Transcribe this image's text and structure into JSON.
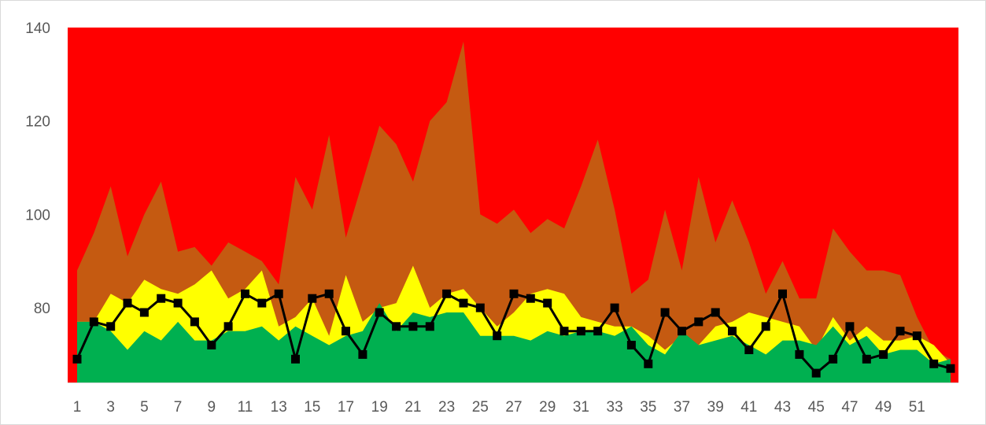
{
  "chart_data": {
    "type": "area",
    "title": "",
    "xlabel": "",
    "ylabel": "",
    "ylim": [
      64,
      140
    ],
    "y_ticks": [
      80,
      100,
      120,
      140
    ],
    "x_tick_labels": [
      "1",
      "3",
      "5",
      "7",
      "9",
      "11",
      "13",
      "15",
      "17",
      "19",
      "21",
      "23",
      "25",
      "27",
      "29",
      "31",
      "33",
      "35",
      "37",
      "39",
      "41",
      "43",
      "45",
      "47",
      "49",
      "51"
    ],
    "x": [
      1,
      2,
      3,
      4,
      5,
      6,
      7,
      8,
      9,
      10,
      11,
      12,
      13,
      14,
      15,
      16,
      17,
      18,
      19,
      20,
      21,
      22,
      23,
      24,
      25,
      26,
      27,
      28,
      29,
      30,
      31,
      32,
      33,
      34,
      35,
      36,
      37,
      38,
      39,
      40,
      41,
      42,
      43,
      44,
      45,
      46,
      47,
      48,
      49,
      50,
      51,
      52,
      53
    ],
    "background_color": "#ff0000",
    "grid": false,
    "legend": "none",
    "series": [
      {
        "color": "#c55a11",
        "kind": "area",
        "values": [
          88,
          96,
          106,
          91,
          100,
          107,
          92,
          93,
          89,
          94,
          92,
          90,
          85,
          108,
          101,
          117,
          95,
          107,
          119,
          115,
          107,
          120,
          124,
          137,
          100,
          98,
          101,
          96,
          99,
          97,
          106,
          116,
          101,
          83,
          86,
          101,
          88,
          108,
          94,
          103,
          94,
          83,
          90,
          82,
          82,
          97,
          92,
          88,
          88,
          87,
          78,
          71,
          69
        ]
      },
      {
        "color": "#ffff00",
        "kind": "area",
        "values": [
          77,
          77,
          83,
          81,
          86,
          84,
          83,
          85,
          88,
          82,
          84,
          88,
          76,
          78,
          82,
          74,
          87,
          77,
          80,
          81,
          89,
          80,
          83,
          84,
          80,
          76,
          79,
          83,
          84,
          83,
          78,
          77,
          76,
          76,
          74,
          71,
          74,
          72,
          76,
          77,
          79,
          78,
          77,
          76,
          71,
          78,
          73,
          76,
          73,
          73,
          74,
          72,
          68
        ]
      },
      {
        "color": "#00b050",
        "kind": "area",
        "values": [
          77,
          77,
          75,
          71,
          75,
          73,
          77,
          73,
          73,
          75,
          75,
          76,
          73,
          76,
          74,
          72,
          74,
          75,
          81,
          75,
          79,
          78,
          79,
          79,
          74,
          74,
          74,
          73,
          75,
          74,
          75,
          75,
          74,
          76,
          72,
          70,
          75,
          72,
          73,
          74,
          72,
          70,
          73,
          73,
          72,
          76,
          72,
          74,
          70,
          71,
          71,
          68,
          69
        ]
      },
      {
        "color": "#000000",
        "kind": "line",
        "marker": "square",
        "values": [
          69,
          77,
          76,
          81,
          79,
          82,
          81,
          77,
          72,
          76,
          83,
          81,
          83,
          69,
          82,
          83,
          75,
          70,
          79,
          76,
          76,
          76,
          83,
          81,
          80,
          74,
          83,
          82,
          81,
          75,
          75,
          75,
          80,
          72,
          68,
          79,
          75,
          77,
          79,
          75,
          71,
          76,
          83,
          70,
          66,
          69,
          76,
          69,
          70,
          75,
          74,
          68,
          67
        ]
      }
    ]
  }
}
